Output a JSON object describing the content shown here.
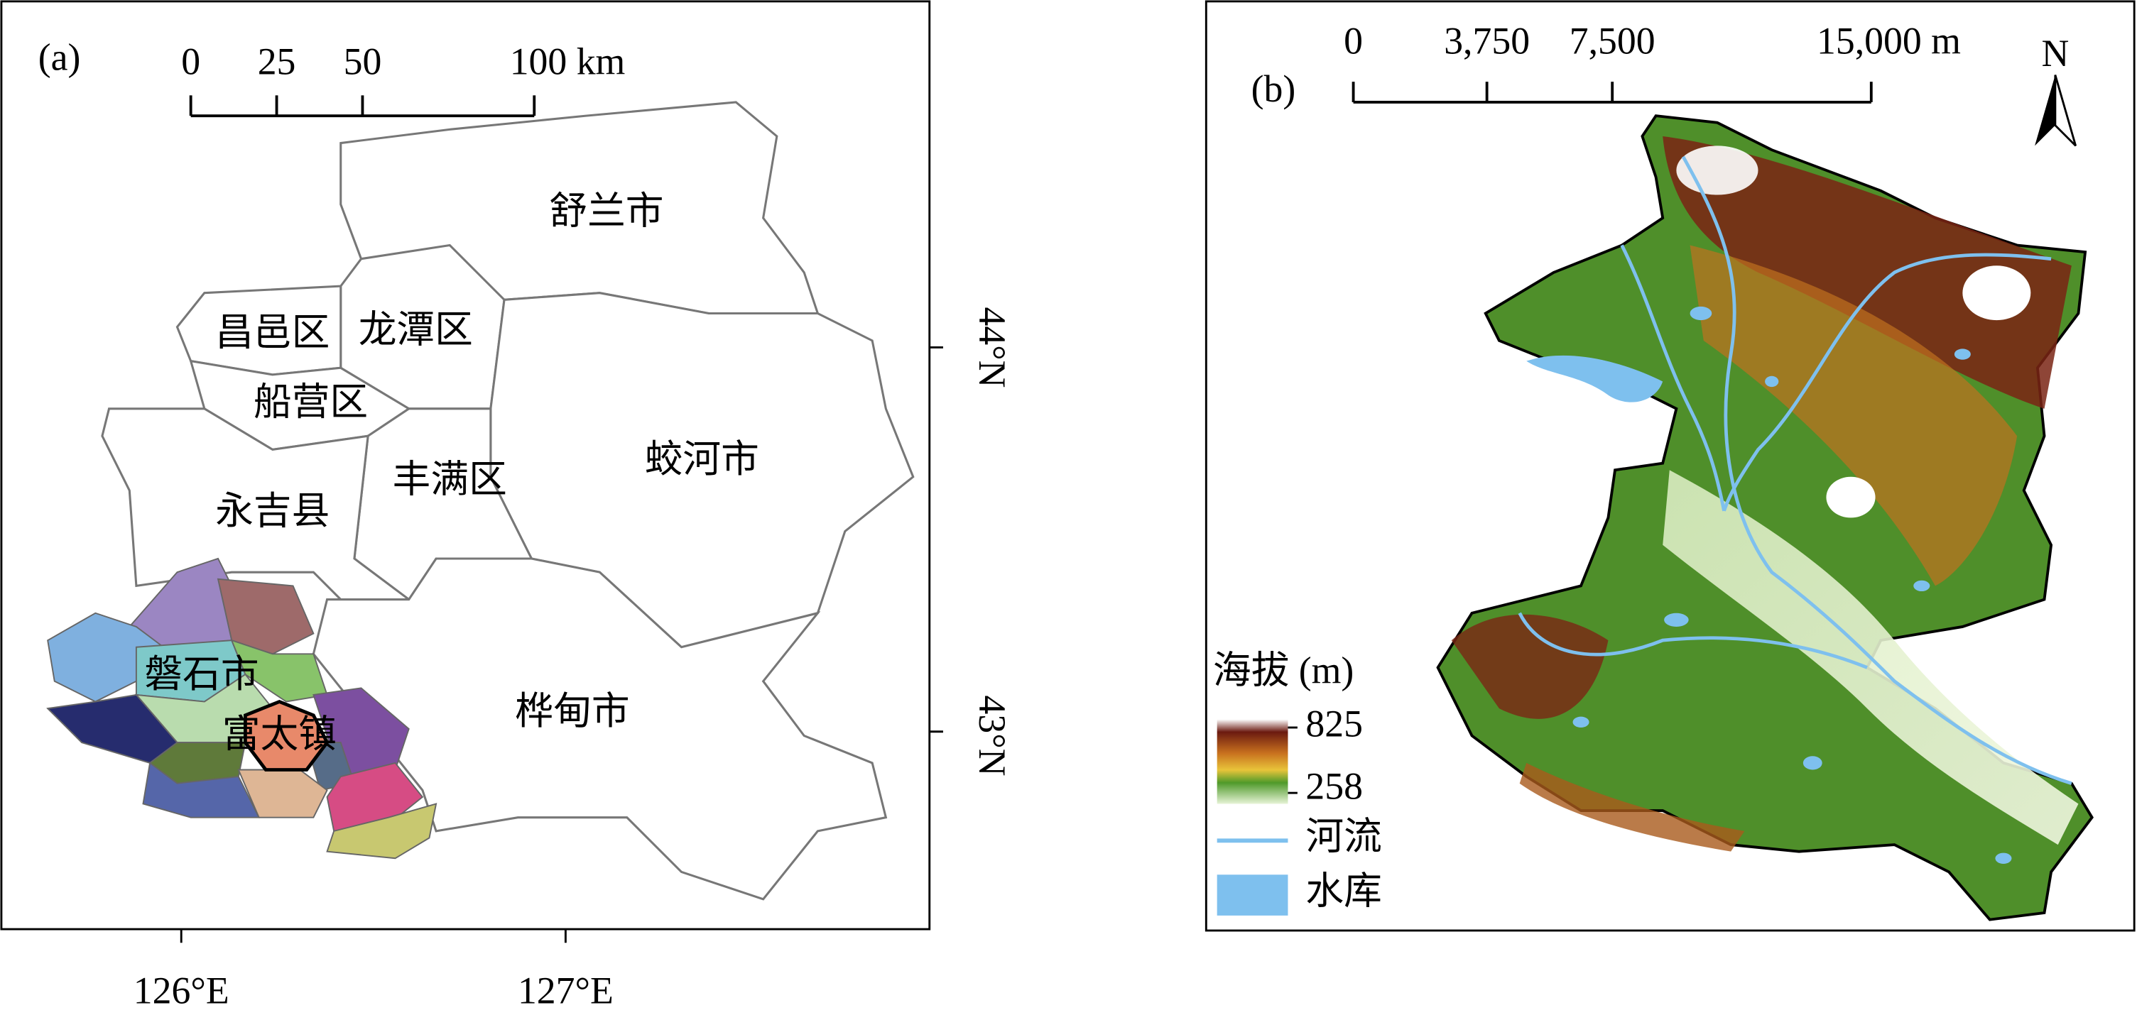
{
  "panel_a": {
    "label": "(a)",
    "scale_bar": [
      "0",
      "25",
      "50",
      "100 km"
    ],
    "regions": [
      "舒兰市",
      "昌邑区",
      "龙潭区",
      "船营区",
      "蛟河市",
      "永吉县",
      "丰满区",
      "磐石市",
      "富太镇",
      "桦甸市"
    ],
    "latitude_labels": [
      "44°N",
      "43°N"
    ],
    "longitude_labels": [
      "126°E",
      "127°E"
    ]
  },
  "panel_b": {
    "label": "(b)",
    "scale_bar": [
      "0",
      "3,750",
      "7,500",
      "15,000 m"
    ],
    "north": "N",
    "legend": {
      "title": "海拔 (m)",
      "high": "825",
      "low": "258",
      "river": "河流",
      "reservoir": "水库"
    }
  }
}
